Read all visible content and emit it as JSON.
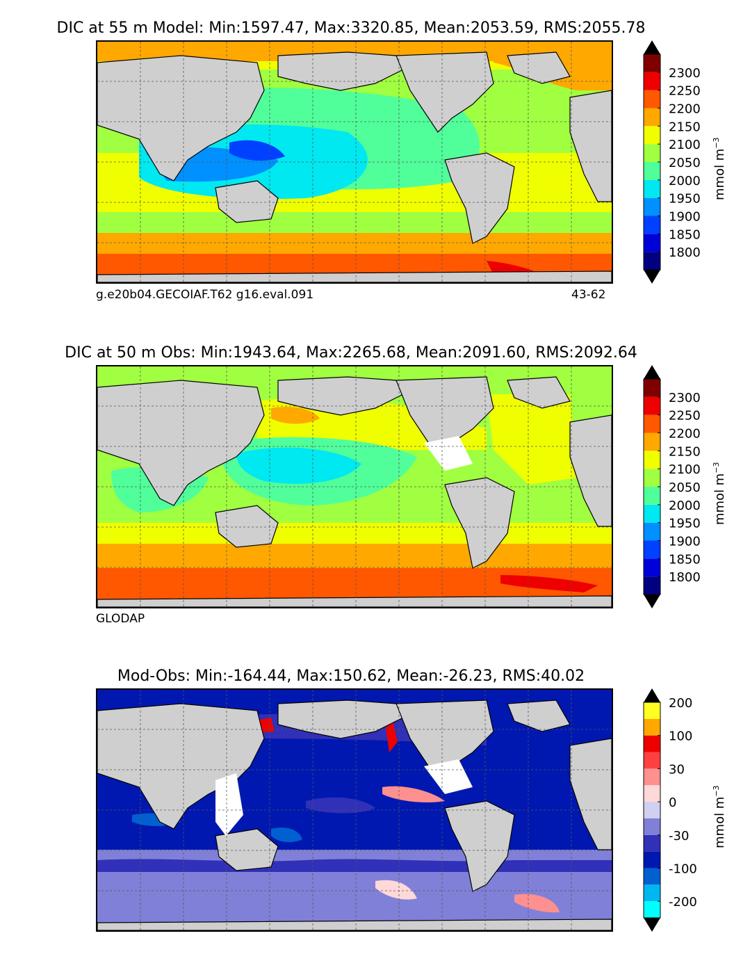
{
  "panels": [
    {
      "title": "DIC at 55 m Model: Min:1597.47, Max:3320.85, Mean:2053.59, RMS:2055.78",
      "caption_left": "g.e20b04.GECOIAF.T62 g16.eval.091",
      "caption_right": "43-62",
      "colorbar": {
        "unit": "mmol m",
        "unit_exponent": "−3",
        "levels": [
          "1800",
          "1850",
          "1900",
          "1950",
          "2000",
          "2050",
          "2100",
          "2150",
          "2200",
          "2250",
          "2300"
        ],
        "colors": [
          "#000080",
          "#0000d8",
          "#0040ff",
          "#0090ff",
          "#00e8f0",
          "#50ff9a",
          "#a0ff40",
          "#f0ff00",
          "#ffa800",
          "#ff5800",
          "#ee0000",
          "#800000"
        ]
      }
    },
    {
      "title": "DIC at 50 m Obs: Min:1943.64, Max:2265.68, Mean:2091.60, RMS:2092.64",
      "caption_left": "GLODAP",
      "caption_right": "",
      "colorbar": {
        "unit": "mmol m",
        "unit_exponent": "−3",
        "levels": [
          "1800",
          "1850",
          "1900",
          "1950",
          "2000",
          "2050",
          "2100",
          "2150",
          "2200",
          "2250",
          "2300"
        ],
        "colors": [
          "#000080",
          "#0000d8",
          "#0040ff",
          "#0090ff",
          "#00e8f0",
          "#50ff9a",
          "#a0ff40",
          "#f0ff00",
          "#ffa800",
          "#ff5800",
          "#ee0000",
          "#800000"
        ]
      }
    },
    {
      "title": "Mod-Obs: Min:-164.44, Max:150.62, Mean:-26.23, RMS:40.02",
      "caption_left": "",
      "caption_right": "",
      "colorbar": {
        "unit": "mmol m",
        "unit_exponent": "−3",
        "levels": [
          "-200",
          "",
          "-100",
          "",
          "-30",
          "",
          "0",
          "",
          "30",
          "",
          "100",
          "",
          "200"
        ],
        "colors": [
          "#00ffff",
          "#00b8f0",
          "#0060d0",
          "#0018b0",
          "#3030b8",
          "#8080d8",
          "#d0d0f0",
          "#ffd8d8",
          "#ff9090",
          "#ff4040",
          "#ee0000",
          "#ffa800",
          "#ffff20"
        ]
      }
    }
  ],
  "map_colors": {
    "land": "#cfcfcf",
    "coast": "#000000",
    "grid": "#555555",
    "missing": "#ffffff"
  }
}
